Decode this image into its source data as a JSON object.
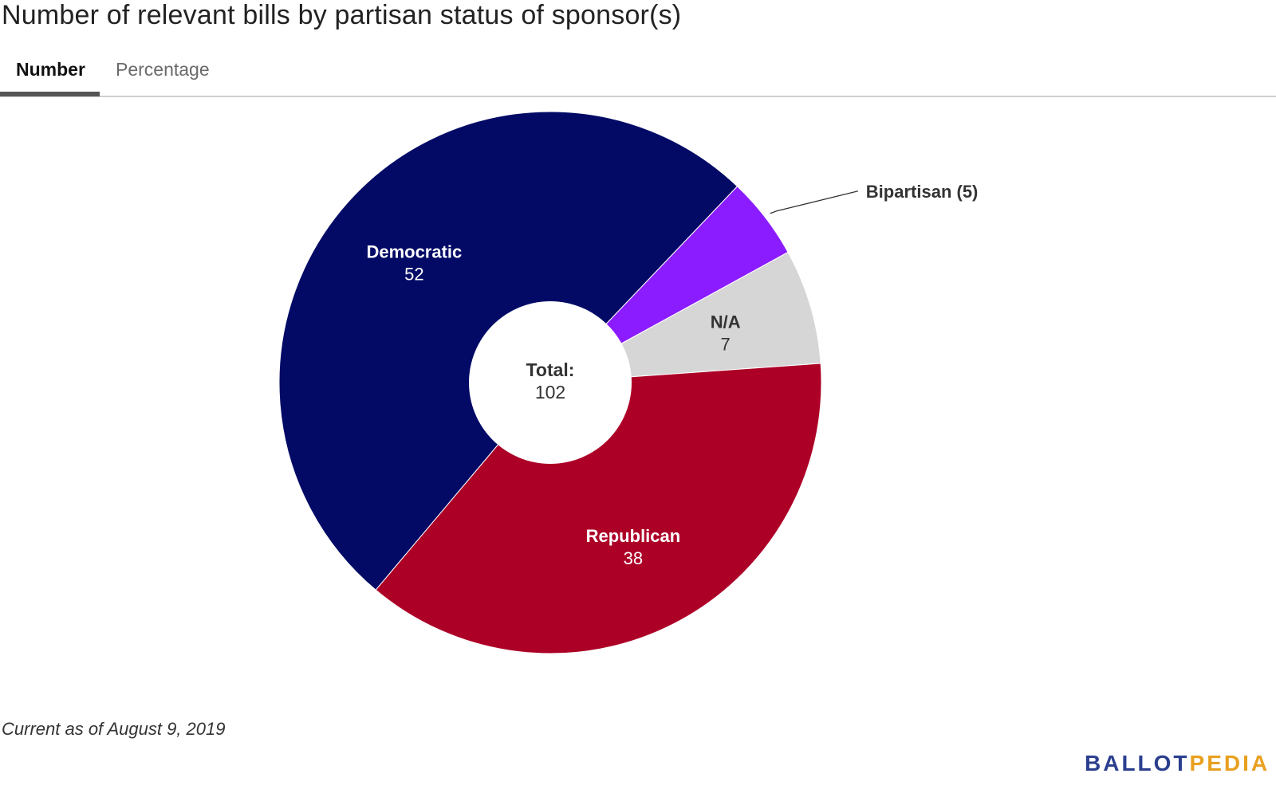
{
  "title": "Number of relevant bills by partisan status of sponsor(s)",
  "tabs": [
    {
      "label": "Number",
      "active": true
    },
    {
      "label": "Percentage",
      "active": false
    }
  ],
  "chart_data": {
    "type": "pie",
    "style": "donut",
    "categories": [
      "Bipartisan",
      "N/A",
      "Republican",
      "Democratic"
    ],
    "values": [
      5,
      7,
      38,
      52
    ],
    "colors": [
      "#8b1cff",
      "#d6d6d6",
      "#ad0027",
      "#020a66"
    ],
    "labels": [
      {
        "name": "Bipartisan (5)",
        "value": ""
      },
      {
        "name": "N/A",
        "value": "7"
      },
      {
        "name": "Republican",
        "value": "38"
      },
      {
        "name": "Democratic",
        "value": "52"
      }
    ],
    "center": {
      "label": "Total:",
      "value": "102"
    }
  },
  "footnote": "Current as of August 9, 2019",
  "logo": {
    "part1": "BALLOT",
    "part2": "PEDIA"
  }
}
